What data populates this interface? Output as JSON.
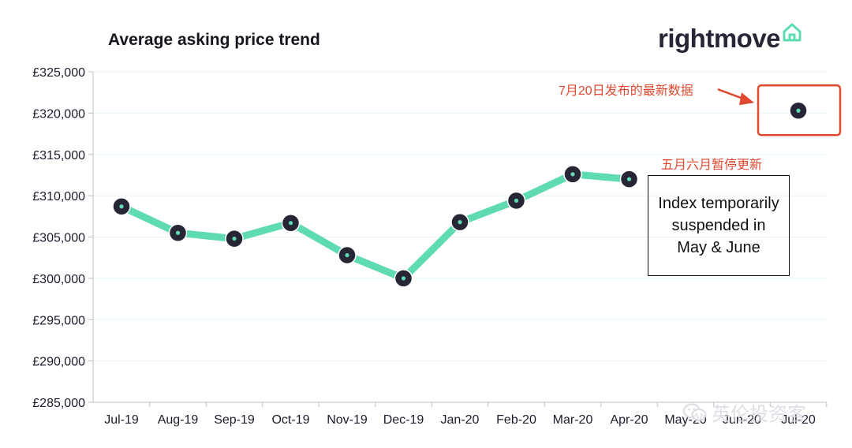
{
  "chart_data": {
    "type": "line",
    "title": "Average asking price trend",
    "categories": [
      "Jul-19",
      "Aug-19",
      "Sep-19",
      "Oct-19",
      "Nov-19",
      "Dec-19",
      "Jan-20",
      "Feb-20",
      "Mar-20",
      "Apr-20",
      "May-20",
      "Jun-20",
      "Jul-20"
    ],
    "series": [
      {
        "values": [
          308700,
          305500,
          304800,
          306700,
          302800,
          300000,
          306800,
          309400,
          312600,
          312000,
          null,
          null,
          320300
        ]
      }
    ],
    "ylim": [
      285000,
      325000
    ],
    "yticks": [
      285000,
      290000,
      295000,
      300000,
      305000,
      310000,
      315000,
      320000,
      325000
    ],
    "ytick_labels": [
      "£285,000",
      "£290,000",
      "£295,000",
      "£300,000",
      "£305,000",
      "£310,000",
      "£315,000",
      "£320,000",
      "£325,000"
    ],
    "grid": true,
    "line_color": "#5fdbb3",
    "marker_color": "#262637",
    "marker_center_color": "#5fdbb3"
  },
  "brand": {
    "name": "rightmove",
    "icon": "house-outline-icon",
    "color": "#5fdbb3"
  },
  "annotations": {
    "latest_data": "7月20日发布的最新数据",
    "paused_label": "五月六月暂停更新",
    "suspended_text": "Index temporarily suspended in May & June",
    "accent_color": "#e0482f"
  },
  "watermark": {
    "text": "英伦投资客",
    "icon": "wechat-icon"
  }
}
